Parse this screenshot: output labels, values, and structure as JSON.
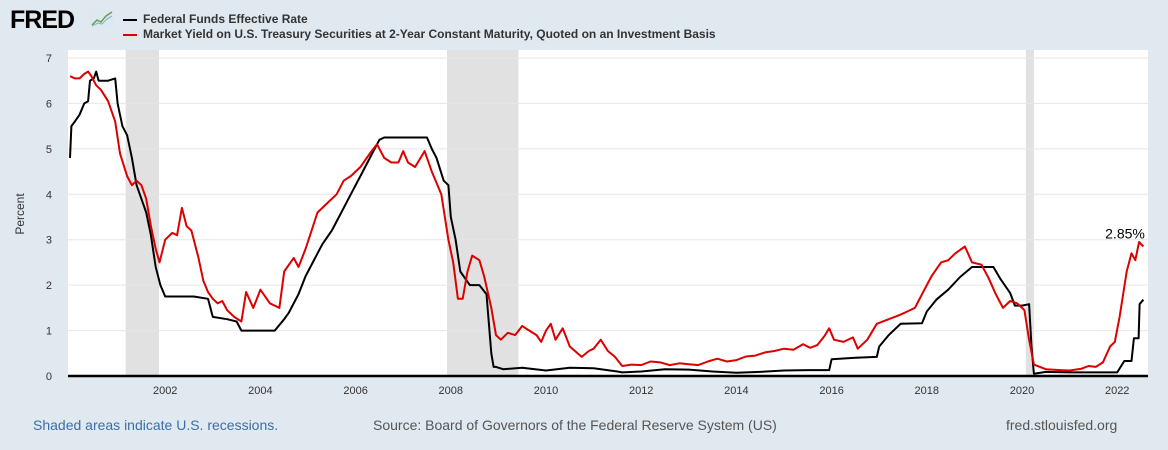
{
  "header": {
    "logo_text": "FRED",
    "logo_icon": "line-chart-icon"
  },
  "footer": {
    "recession_note": "Shaded areas indicate U.S. recessions.",
    "source": "Source: Board of Governors of the Federal Reserve System (US)",
    "site": "fred.stlouisfed.org"
  },
  "chart_data": {
    "type": "line",
    "title": "",
    "xlabel": "",
    "ylabel": "Percent",
    "xlim": [
      2000.0,
      2022.6
    ],
    "ylim": [
      0,
      7
    ],
    "yticks": [
      0,
      1,
      2,
      3,
      4,
      5,
      6,
      7
    ],
    "xticks": [
      2002,
      2004,
      2006,
      2008,
      2010,
      2012,
      2014,
      2016,
      2018,
      2020,
      2022
    ],
    "xtick_labels": [
      "2002",
      "2004",
      "2006",
      "2008",
      "2010",
      "2012",
      "2014",
      "2016",
      "2018",
      "2020",
      "2022"
    ],
    "grid": true,
    "legend_position": "top-left",
    "recessions": [
      [
        2001.17,
        2001.87
      ],
      [
        2007.92,
        2009.42
      ],
      [
        2020.08,
        2020.25
      ]
    ],
    "annotation": {
      "text": "2.85%",
      "x": 2022.5,
      "y": 2.85
    },
    "series": [
      {
        "name": "Federal Funds Effective Rate",
        "color": "#000000",
        "points": [
          [
            2000.0,
            4.8
          ],
          [
            2000.03,
            5.5
          ],
          [
            2000.1,
            5.6
          ],
          [
            2000.2,
            5.75
          ],
          [
            2000.3,
            6.0
          ],
          [
            2000.38,
            6.05
          ],
          [
            2000.42,
            6.5
          ],
          [
            2000.5,
            6.55
          ],
          [
            2000.55,
            6.7
          ],
          [
            2000.6,
            6.5
          ],
          [
            2000.8,
            6.5
          ],
          [
            2000.95,
            6.55
          ],
          [
            2001.0,
            6.0
          ],
          [
            2001.1,
            5.5
          ],
          [
            2001.2,
            5.3
          ],
          [
            2001.3,
            4.8
          ],
          [
            2001.4,
            4.2
          ],
          [
            2001.5,
            3.9
          ],
          [
            2001.6,
            3.6
          ],
          [
            2001.7,
            3.1
          ],
          [
            2001.8,
            2.4
          ],
          [
            2001.9,
            2.0
          ],
          [
            2002.0,
            1.75
          ],
          [
            2002.3,
            1.75
          ],
          [
            2002.6,
            1.75
          ],
          [
            2002.9,
            1.7
          ],
          [
            2003.0,
            1.3
          ],
          [
            2003.3,
            1.25
          ],
          [
            2003.5,
            1.2
          ],
          [
            2003.6,
            1.0
          ],
          [
            2003.9,
            1.0
          ],
          [
            2004.3,
            1.0
          ],
          [
            2004.5,
            1.25
          ],
          [
            2004.6,
            1.4
          ],
          [
            2004.8,
            1.8
          ],
          [
            2004.95,
            2.2
          ],
          [
            2005.1,
            2.5
          ],
          [
            2005.3,
            2.9
          ],
          [
            2005.5,
            3.2
          ],
          [
            2005.7,
            3.6
          ],
          [
            2005.9,
            4.0
          ],
          [
            2006.1,
            4.4
          ],
          [
            2006.3,
            4.8
          ],
          [
            2006.5,
            5.2
          ],
          [
            2006.6,
            5.25
          ],
          [
            2007.0,
            5.25
          ],
          [
            2007.5,
            5.25
          ],
          [
            2007.6,
            5.0
          ],
          [
            2007.7,
            4.8
          ],
          [
            2007.85,
            4.3
          ],
          [
            2007.95,
            4.2
          ],
          [
            2008.0,
            3.5
          ],
          [
            2008.1,
            3.0
          ],
          [
            2008.2,
            2.3
          ],
          [
            2008.4,
            2.0
          ],
          [
            2008.6,
            2.0
          ],
          [
            2008.75,
            1.8
          ],
          [
            2008.85,
            0.5
          ],
          [
            2008.9,
            0.2
          ],
          [
            2008.95,
            0.2
          ],
          [
            2009.1,
            0.15
          ],
          [
            2009.5,
            0.18
          ],
          [
            2010.0,
            0.12
          ],
          [
            2010.5,
            0.18
          ],
          [
            2011.0,
            0.17
          ],
          [
            2011.5,
            0.1
          ],
          [
            2011.6,
            0.08
          ],
          [
            2012.0,
            0.1
          ],
          [
            2012.5,
            0.15
          ],
          [
            2013.0,
            0.14
          ],
          [
            2013.5,
            0.1
          ],
          [
            2014.0,
            0.07
          ],
          [
            2014.5,
            0.09
          ],
          [
            2015.0,
            0.12
          ],
          [
            2015.5,
            0.13
          ],
          [
            2015.95,
            0.13
          ],
          [
            2016.0,
            0.37
          ],
          [
            2016.5,
            0.4
          ],
          [
            2016.95,
            0.42
          ],
          [
            2017.0,
            0.65
          ],
          [
            2017.2,
            0.9
          ],
          [
            2017.45,
            1.15
          ],
          [
            2017.9,
            1.16
          ],
          [
            2018.0,
            1.42
          ],
          [
            2018.2,
            1.68
          ],
          [
            2018.45,
            1.9
          ],
          [
            2018.7,
            2.18
          ],
          [
            2018.95,
            2.4
          ],
          [
            2019.4,
            2.4
          ],
          [
            2019.55,
            2.13
          ],
          [
            2019.75,
            1.83
          ],
          [
            2019.85,
            1.55
          ],
          [
            2020.0,
            1.55
          ],
          [
            2020.15,
            1.58
          ],
          [
            2020.2,
            0.65
          ],
          [
            2020.25,
            0.05
          ],
          [
            2020.5,
            0.09
          ],
          [
            2021.0,
            0.08
          ],
          [
            2021.5,
            0.08
          ],
          [
            2022.0,
            0.08
          ],
          [
            2022.15,
            0.33
          ],
          [
            2022.3,
            0.33
          ],
          [
            2022.35,
            0.83
          ],
          [
            2022.45,
            0.83
          ],
          [
            2022.47,
            1.58
          ],
          [
            2022.55,
            1.68
          ]
        ]
      },
      {
        "name": "Market Yield on U.S. Treasury Securities at 2-Year Constant Maturity, Quoted on an Investment Basis",
        "color": "#dd0000",
        "points": [
          [
            2000.0,
            6.6
          ],
          [
            2000.1,
            6.55
          ],
          [
            2000.2,
            6.55
          ],
          [
            2000.3,
            6.65
          ],
          [
            2000.38,
            6.7
          ],
          [
            2000.45,
            6.6
          ],
          [
            2000.55,
            6.4
          ],
          [
            2000.65,
            6.3
          ],
          [
            2000.8,
            6.05
          ],
          [
            2000.95,
            5.6
          ],
          [
            2001.05,
            4.9
          ],
          [
            2001.2,
            4.4
          ],
          [
            2001.3,
            4.2
          ],
          [
            2001.4,
            4.3
          ],
          [
            2001.5,
            4.2
          ],
          [
            2001.6,
            3.9
          ],
          [
            2001.7,
            3.3
          ],
          [
            2001.8,
            2.8
          ],
          [
            2001.88,
            2.5
          ],
          [
            2002.0,
            3.0
          ],
          [
            2002.15,
            3.15
          ],
          [
            2002.25,
            3.1
          ],
          [
            2002.35,
            3.7
          ],
          [
            2002.45,
            3.3
          ],
          [
            2002.55,
            3.2
          ],
          [
            2002.7,
            2.6
          ],
          [
            2002.8,
            2.1
          ],
          [
            2002.9,
            1.85
          ],
          [
            2003.0,
            1.7
          ],
          [
            2003.1,
            1.6
          ],
          [
            2003.2,
            1.65
          ],
          [
            2003.3,
            1.45
          ],
          [
            2003.45,
            1.3
          ],
          [
            2003.6,
            1.2
          ],
          [
            2003.7,
            1.85
          ],
          [
            2003.85,
            1.5
          ],
          [
            2004.0,
            1.9
          ],
          [
            2004.2,
            1.6
          ],
          [
            2004.4,
            1.5
          ],
          [
            2004.5,
            2.3
          ],
          [
            2004.7,
            2.6
          ],
          [
            2004.8,
            2.4
          ],
          [
            2004.95,
            2.8
          ],
          [
            2005.2,
            3.6
          ],
          [
            2005.4,
            3.8
          ],
          [
            2005.6,
            4.0
          ],
          [
            2005.75,
            4.3
          ],
          [
            2005.9,
            4.4
          ],
          [
            2006.1,
            4.6
          ],
          [
            2006.3,
            4.9
          ],
          [
            2006.45,
            5.1
          ],
          [
            2006.6,
            4.8
          ],
          [
            2006.75,
            4.7
          ],
          [
            2006.9,
            4.7
          ],
          [
            2007.0,
            4.95
          ],
          [
            2007.1,
            4.7
          ],
          [
            2007.25,
            4.6
          ],
          [
            2007.45,
            4.95
          ],
          [
            2007.6,
            4.5
          ],
          [
            2007.8,
            4.0
          ],
          [
            2007.95,
            3.0
          ],
          [
            2008.05,
            2.5
          ],
          [
            2008.15,
            1.7
          ],
          [
            2008.25,
            1.7
          ],
          [
            2008.35,
            2.3
          ],
          [
            2008.45,
            2.65
          ],
          [
            2008.6,
            2.55
          ],
          [
            2008.7,
            2.2
          ],
          [
            2008.85,
            1.5
          ],
          [
            2008.95,
            0.9
          ],
          [
            2009.05,
            0.8
          ],
          [
            2009.2,
            0.95
          ],
          [
            2009.35,
            0.9
          ],
          [
            2009.5,
            1.1
          ],
          [
            2009.65,
            1.0
          ],
          [
            2009.8,
            0.9
          ],
          [
            2009.9,
            0.75
          ],
          [
            2010.0,
            1.0
          ],
          [
            2010.1,
            1.15
          ],
          [
            2010.2,
            0.8
          ],
          [
            2010.35,
            1.05
          ],
          [
            2010.5,
            0.65
          ],
          [
            2010.75,
            0.42
          ],
          [
            2010.9,
            0.55
          ],
          [
            2011.0,
            0.6
          ],
          [
            2011.15,
            0.8
          ],
          [
            2011.3,
            0.55
          ],
          [
            2011.45,
            0.42
          ],
          [
            2011.6,
            0.22
          ],
          [
            2011.8,
            0.25
          ],
          [
            2012.0,
            0.24
          ],
          [
            2012.2,
            0.32
          ],
          [
            2012.4,
            0.3
          ],
          [
            2012.6,
            0.24
          ],
          [
            2012.8,
            0.28
          ],
          [
            2013.0,
            0.26
          ],
          [
            2013.2,
            0.24
          ],
          [
            2013.4,
            0.32
          ],
          [
            2013.6,
            0.38
          ],
          [
            2013.8,
            0.32
          ],
          [
            2014.0,
            0.35
          ],
          [
            2014.2,
            0.43
          ],
          [
            2014.4,
            0.45
          ],
          [
            2014.6,
            0.52
          ],
          [
            2014.8,
            0.55
          ],
          [
            2015.0,
            0.6
          ],
          [
            2015.2,
            0.58
          ],
          [
            2015.4,
            0.7
          ],
          [
            2015.55,
            0.62
          ],
          [
            2015.7,
            0.68
          ],
          [
            2015.85,
            0.88
          ],
          [
            2015.95,
            1.05
          ],
          [
            2016.05,
            0.8
          ],
          [
            2016.25,
            0.75
          ],
          [
            2016.45,
            0.85
          ],
          [
            2016.55,
            0.6
          ],
          [
            2016.75,
            0.8
          ],
          [
            2016.95,
            1.15
          ],
          [
            2017.2,
            1.25
          ],
          [
            2017.4,
            1.33
          ],
          [
            2017.55,
            1.4
          ],
          [
            2017.75,
            1.5
          ],
          [
            2017.95,
            1.9
          ],
          [
            2018.1,
            2.2
          ],
          [
            2018.3,
            2.5
          ],
          [
            2018.45,
            2.55
          ],
          [
            2018.6,
            2.7
          ],
          [
            2018.8,
            2.85
          ],
          [
            2018.95,
            2.5
          ],
          [
            2019.15,
            2.45
          ],
          [
            2019.3,
            2.15
          ],
          [
            2019.45,
            1.8
          ],
          [
            2019.6,
            1.5
          ],
          [
            2019.75,
            1.65
          ],
          [
            2019.9,
            1.6
          ],
          [
            2020.05,
            1.45
          ],
          [
            2020.15,
            0.8
          ],
          [
            2020.25,
            0.25
          ],
          [
            2020.5,
            0.15
          ],
          [
            2020.8,
            0.13
          ],
          [
            2021.0,
            0.12
          ],
          [
            2021.25,
            0.16
          ],
          [
            2021.4,
            0.22
          ],
          [
            2021.55,
            0.2
          ],
          [
            2021.7,
            0.3
          ],
          [
            2021.85,
            0.65
          ],
          [
            2021.95,
            0.75
          ],
          [
            2022.05,
            1.3
          ],
          [
            2022.2,
            2.3
          ],
          [
            2022.3,
            2.7
          ],
          [
            2022.38,
            2.55
          ],
          [
            2022.46,
            2.95
          ],
          [
            2022.55,
            2.85
          ]
        ]
      }
    ]
  }
}
